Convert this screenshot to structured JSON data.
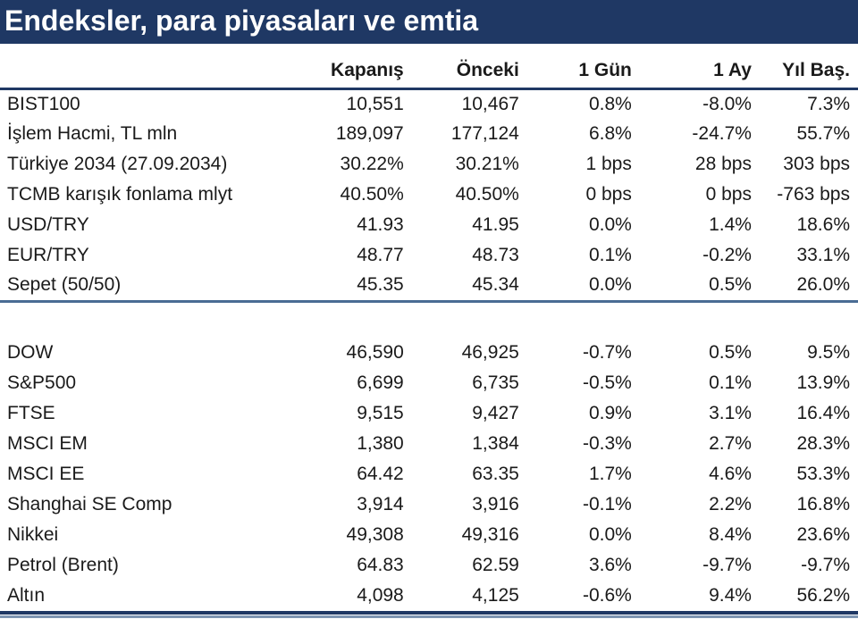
{
  "title": "Endeksler, para piyasaları ve emtia",
  "colors": {
    "title_bg": "#1f3864",
    "title_text": "#ffffff",
    "header_rule": "#1f3864",
    "section_rule": "#4a6c94",
    "bottom_rule_dark": "#1f3864",
    "bottom_rule_light": "#7e95b2",
    "body_text": "#1a1a1a"
  },
  "table": {
    "columns": [
      "Kapanış",
      "Önceki",
      "1 Gün",
      "1 Ay",
      "Yıl Baş."
    ],
    "sections": [
      {
        "rows": [
          {
            "label": "BIST100",
            "values": [
              "10,551",
              "10,467",
              "0.8%",
              "-8.0%",
              "7.3%"
            ]
          },
          {
            "label": "İşlem Hacmi, TL mln",
            "values": [
              "189,097",
              "177,124",
              "6.8%",
              "-24.7%",
              "55.7%"
            ]
          },
          {
            "label": "Türkiye 2034 (27.09.2034)",
            "values": [
              "30.22%",
              "30.21%",
              "1 bps",
              "28 bps",
              "303 bps"
            ]
          },
          {
            "label": "TCMB karışık fonlama mlyt",
            "values": [
              "40.50%",
              "40.50%",
              "0 bps",
              "0 bps",
              "-763 bps"
            ]
          },
          {
            "label": "USD/TRY",
            "values": [
              "41.93",
              "41.95",
              "0.0%",
              "1.4%",
              "18.6%"
            ]
          },
          {
            "label": "EUR/TRY",
            "values": [
              "48.77",
              "48.73",
              "0.1%",
              "-0.2%",
              "33.1%"
            ]
          },
          {
            "label": "Sepet (50/50)",
            "values": [
              "45.35",
              "45.34",
              "0.0%",
              "0.5%",
              "26.0%"
            ]
          }
        ]
      },
      {
        "rows": [
          {
            "label": "DOW",
            "values": [
              "46,590",
              "46,925",
              "-0.7%",
              "0.5%",
              "9.5%"
            ]
          },
          {
            "label": "S&P500",
            "values": [
              "6,699",
              "6,735",
              "-0.5%",
              "0.1%",
              "13.9%"
            ]
          },
          {
            "label": "FTSE",
            "values": [
              "9,515",
              "9,427",
              "0.9%",
              "3.1%",
              "16.4%"
            ]
          },
          {
            "label": "MSCI EM",
            "values": [
              "1,380",
              "1,384",
              "-0.3%",
              "2.7%",
              "28.3%"
            ]
          },
          {
            "label": "MSCI EE",
            "values": [
              "64.42",
              "63.35",
              "1.7%",
              "4.6%",
              "53.3%"
            ]
          },
          {
            "label": "Shanghai SE Comp",
            "values": [
              "3,914",
              "3,916",
              "-0.1%",
              "2.2%",
              "16.8%"
            ]
          },
          {
            "label": "Nikkei",
            "values": [
              "49,308",
              "49,316",
              "0.0%",
              "8.4%",
              "23.6%"
            ]
          },
          {
            "label": "Petrol (Brent)",
            "values": [
              "64.83",
              "62.59",
              "3.6%",
              "-9.7%",
              "-9.7%"
            ]
          },
          {
            "label": "Altın",
            "values": [
              "4,098",
              "4,125",
              "-0.6%",
              "9.4%",
              "56.2%"
            ]
          }
        ]
      }
    ]
  }
}
